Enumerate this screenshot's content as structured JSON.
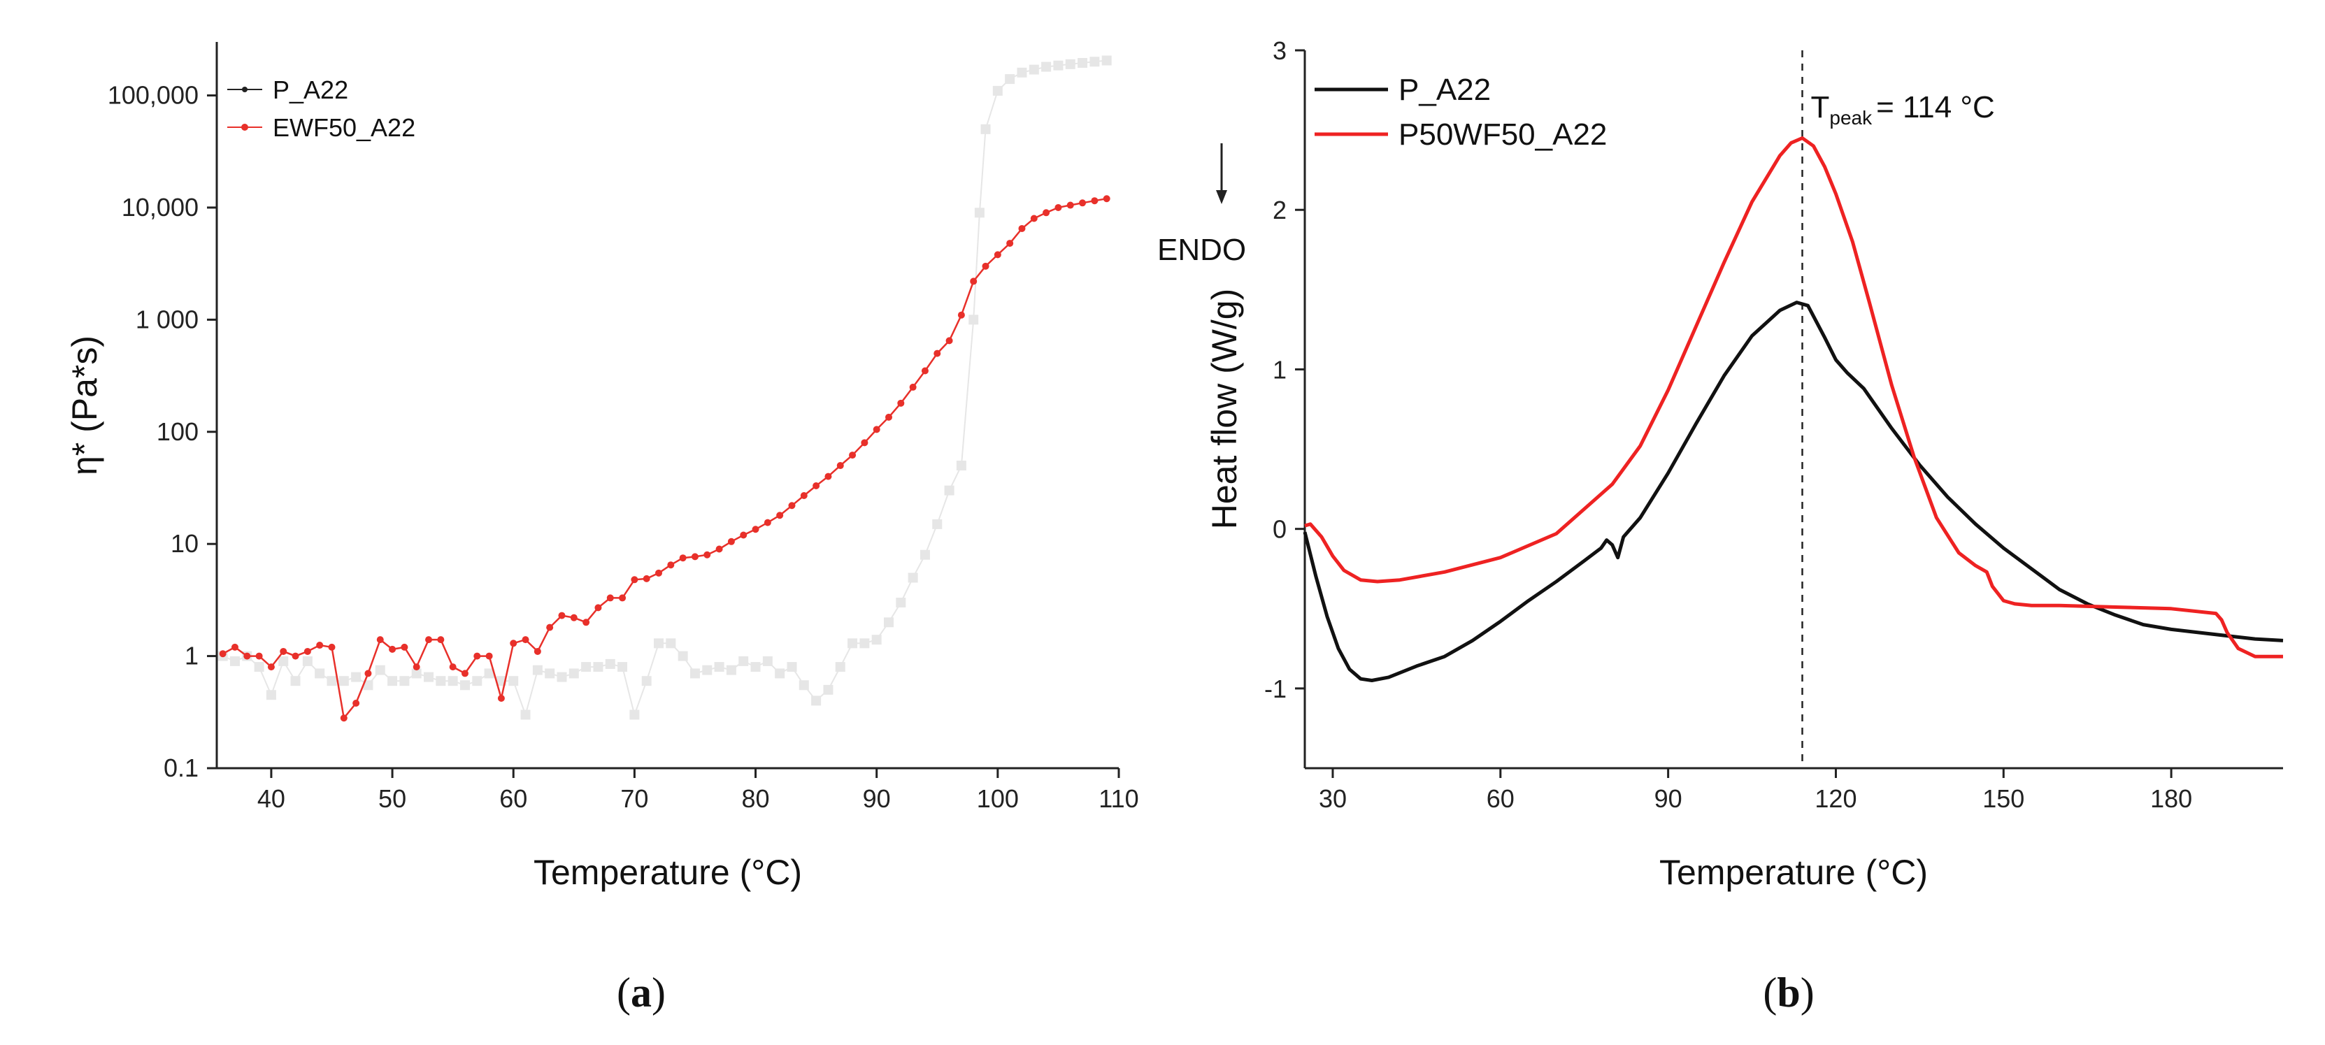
{
  "chart_data": [
    {
      "type": "line",
      "panel": "a",
      "panel_label": "a",
      "xlabel": "Temperature (°C)",
      "ylabel": "η* (Pa*s)",
      "yscale": "log",
      "xlim": [
        35.5,
        110
      ],
      "ylim": [
        0.1,
        300000
      ],
      "xticks": [
        40,
        50,
        60,
        70,
        80,
        90,
        100,
        110
      ],
      "yticks": [
        0.1,
        1,
        10,
        100,
        1000,
        10000,
        100000
      ],
      "ytick_labels": [
        "0.1",
        "1",
        "10",
        "100",
        "1 000",
        "10,000",
        "100,000"
      ],
      "legend_position": "top-left",
      "series": [
        {
          "name": "P_A22",
          "color": "#e6e6e6",
          "marker_color": "#e6e6e6",
          "legend_color": "#222222",
          "x": [
            36,
            37,
            38,
            39,
            40,
            41,
            42,
            43,
            44,
            45,
            46,
            47,
            48,
            49,
            50,
            51,
            52,
            53,
            54,
            55,
            56,
            57,
            58,
            59,
            60,
            61,
            62,
            63,
            64,
            65,
            66,
            67,
            68,
            69,
            70,
            71,
            72,
            73,
            74,
            75,
            76,
            77,
            78,
            79,
            80,
            81,
            82,
            83,
            84,
            85,
            86,
            87,
            88,
            89,
            90,
            91,
            92,
            93,
            94,
            95,
            96,
            97,
            98,
            98.5,
            99,
            100,
            101,
            102,
            103,
            104,
            105,
            106,
            107,
            108,
            109
          ],
          "values": [
            1.0,
            0.9,
            1.0,
            0.8,
            0.45,
            0.9,
            0.6,
            0.9,
            0.7,
            0.6,
            0.6,
            0.65,
            0.55,
            0.75,
            0.6,
            0.6,
            0.7,
            0.65,
            0.6,
            0.6,
            0.55,
            0.6,
            0.7,
            0.6,
            0.6,
            0.3,
            0.75,
            0.7,
            0.65,
            0.7,
            0.8,
            0.8,
            0.85,
            0.8,
            0.3,
            0.6,
            1.3,
            1.3,
            1.0,
            0.7,
            0.75,
            0.8,
            0.75,
            0.9,
            0.8,
            0.9,
            0.7,
            0.8,
            0.55,
            0.4,
            0.5,
            0.8,
            1.3,
            1.3,
            1.4,
            2,
            3,
            5,
            8,
            15,
            30,
            50,
            1000,
            9000,
            50000,
            110000,
            140000,
            160000,
            170000,
            180000,
            185000,
            190000,
            195000,
            200000,
            205000
          ]
        },
        {
          "name": "EWF50_A22",
          "color": "#e8302a",
          "x": [
            36,
            37,
            38,
            39,
            40,
            41,
            42,
            43,
            44,
            45,
            46,
            47,
            48,
            49,
            50,
            51,
            52,
            53,
            54,
            55,
            56,
            57,
            58,
            59,
            60,
            61,
            62,
            63,
            64,
            65,
            66,
            67,
            68,
            69,
            70,
            71,
            72,
            73,
            74,
            75,
            76,
            77,
            78,
            79,
            80,
            81,
            82,
            83,
            84,
            85,
            86,
            87,
            88,
            89,
            90,
            91,
            92,
            93,
            94,
            95,
            96,
            97,
            98,
            99,
            100,
            101,
            102,
            103,
            104,
            105,
            106,
            107,
            108,
            109
          ],
          "values": [
            1.05,
            1.2,
            1.0,
            1.0,
            0.8,
            1.1,
            1.0,
            1.1,
            1.25,
            1.2,
            0.28,
            0.38,
            0.7,
            1.4,
            1.15,
            1.2,
            0.8,
            1.4,
            1.4,
            0.8,
            0.7,
            1.0,
            1.0,
            0.42,
            1.3,
            1.4,
            1.1,
            1.8,
            2.3,
            2.2,
            2.0,
            2.7,
            3.3,
            3.3,
            4.8,
            4.9,
            5.5,
            6.5,
            7.5,
            7.7,
            8.0,
            9.0,
            10.5,
            12.0,
            13.5,
            15.5,
            18,
            22,
            27,
            33,
            40,
            50,
            62,
            80,
            105,
            135,
            180,
            250,
            350,
            500,
            650,
            1100,
            2200,
            3000,
            3800,
            4800,
            6500,
            8000,
            9000,
            10000,
            10500,
            11000,
            11500,
            12000
          ]
        }
      ]
    },
    {
      "type": "line",
      "panel": "b",
      "panel_label": "b",
      "xlabel": "Temperature (°C)",
      "ylabel": "Heat flow (W/g)",
      "xlim": [
        25,
        200
      ],
      "ylim": [
        -1.5,
        3
      ],
      "xticks": [
        30,
        60,
        90,
        120,
        150,
        180
      ],
      "yticks": [
        -1,
        0,
        1,
        2,
        3
      ],
      "ytick_labels": [
        "-1",
        "0",
        "1",
        "2",
        "3"
      ],
      "legend_position": "top-left",
      "annotations": {
        "endo_label": "ENDO",
        "peak_label": "T",
        "peak_subscript": "peak",
        "peak_value_text": "= 114 °C",
        "peak_x": 114
      },
      "series": [
        {
          "name": "P_A22",
          "color": "#111111",
          "x": [
            25,
            27,
            29,
            31,
            33,
            35,
            37,
            40,
            45,
            50,
            55,
            60,
            65,
            70,
            75,
            78,
            79,
            80,
            81,
            82,
            85,
            90,
            95,
            100,
            105,
            110,
            113,
            115,
            118,
            120,
            122,
            125,
            130,
            135,
            140,
            145,
            150,
            155,
            160,
            165,
            170,
            175,
            180,
            185,
            190,
            195,
            200
          ],
          "values": [
            -0.02,
            -0.3,
            -0.55,
            -0.75,
            -0.88,
            -0.94,
            -0.95,
            -0.93,
            -0.86,
            -0.8,
            -0.7,
            -0.58,
            -0.45,
            -0.33,
            -0.2,
            -0.12,
            -0.07,
            -0.1,
            -0.18,
            -0.05,
            0.07,
            0.35,
            0.66,
            0.96,
            1.21,
            1.37,
            1.42,
            1.4,
            1.2,
            1.06,
            0.98,
            0.88,
            0.63,
            0.4,
            0.2,
            0.03,
            -0.12,
            -0.25,
            -0.38,
            -0.47,
            -0.54,
            -0.6,
            -0.63,
            -0.65,
            -0.67,
            -0.69,
            -0.7
          ]
        },
        {
          "name": "P50WF50_A22",
          "color": "#ee2222",
          "x": [
            25,
            26,
            28,
            30,
            32,
            35,
            38,
            42,
            50,
            60,
            70,
            80,
            85,
            90,
            95,
            100,
            105,
            110,
            112,
            114,
            116,
            118,
            120,
            123,
            126,
            130,
            134,
            138,
            142,
            145,
            147,
            148,
            150,
            152,
            155,
            160,
            170,
            180,
            188,
            189,
            190,
            192,
            195,
            200
          ],
          "values": [
            0.02,
            0.03,
            -0.05,
            -0.17,
            -0.26,
            -0.32,
            -0.33,
            -0.32,
            -0.27,
            -0.18,
            -0.03,
            0.28,
            0.52,
            0.87,
            1.27,
            1.67,
            2.05,
            2.34,
            2.42,
            2.45,
            2.4,
            2.27,
            2.1,
            1.8,
            1.42,
            0.9,
            0.45,
            0.07,
            -0.15,
            -0.23,
            -0.27,
            -0.36,
            -0.45,
            -0.47,
            -0.48,
            -0.48,
            -0.49,
            -0.5,
            -0.53,
            -0.57,
            -0.65,
            -0.75,
            -0.8,
            -0.8
          ]
        }
      ]
    }
  ]
}
